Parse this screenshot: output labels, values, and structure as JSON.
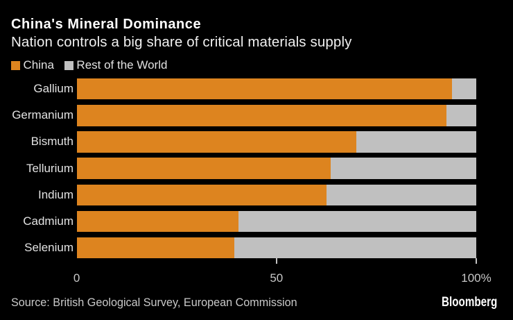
{
  "header": {
    "title": "China's Mineral Dominance",
    "subtitle": "Nation controls a big share of critical materials supply"
  },
  "legend": {
    "items": [
      {
        "label": "China",
        "color": "#dd841f"
      },
      {
        "label": "Rest of the World",
        "color": "#c0c0c0"
      }
    ]
  },
  "chart_data": {
    "type": "bar",
    "orientation": "horizontal",
    "stacked": true,
    "title": "China's Mineral Dominance",
    "subtitle": "Nation controls a big share of critical materials supply",
    "categories": [
      "Gallium",
      "Germanium",
      "Bismuth",
      "Tellurium",
      "Indium",
      "Cadmium",
      "Selenium"
    ],
    "series": [
      {
        "name": "China",
        "color": "#dd841f",
        "values": [
          94,
          92.5,
          70,
          63.5,
          62.5,
          40.5,
          39.5
        ]
      },
      {
        "name": "Rest of the World",
        "color": "#c0c0c0",
        "values": [
          6,
          7.5,
          30,
          36.5,
          37.5,
          59.5,
          60.5
        ]
      }
    ],
    "xlim": [
      0,
      100
    ],
    "x_ticks": [
      {
        "value": 0,
        "label": "0"
      },
      {
        "value": 50,
        "label": "50"
      },
      {
        "value": 100,
        "label": "100%"
      }
    ],
    "unit": "%",
    "grid": false,
    "legend_position": "top"
  },
  "footer": {
    "source": "Source: British Geological Survey, European Commission",
    "brand": "Bloomberg"
  },
  "colors": {
    "background": "#000000",
    "china": "#dd841f",
    "rest_of_world": "#c0c0c0",
    "title_text": "#ffffff",
    "axis_text": "#c8c8c8"
  }
}
